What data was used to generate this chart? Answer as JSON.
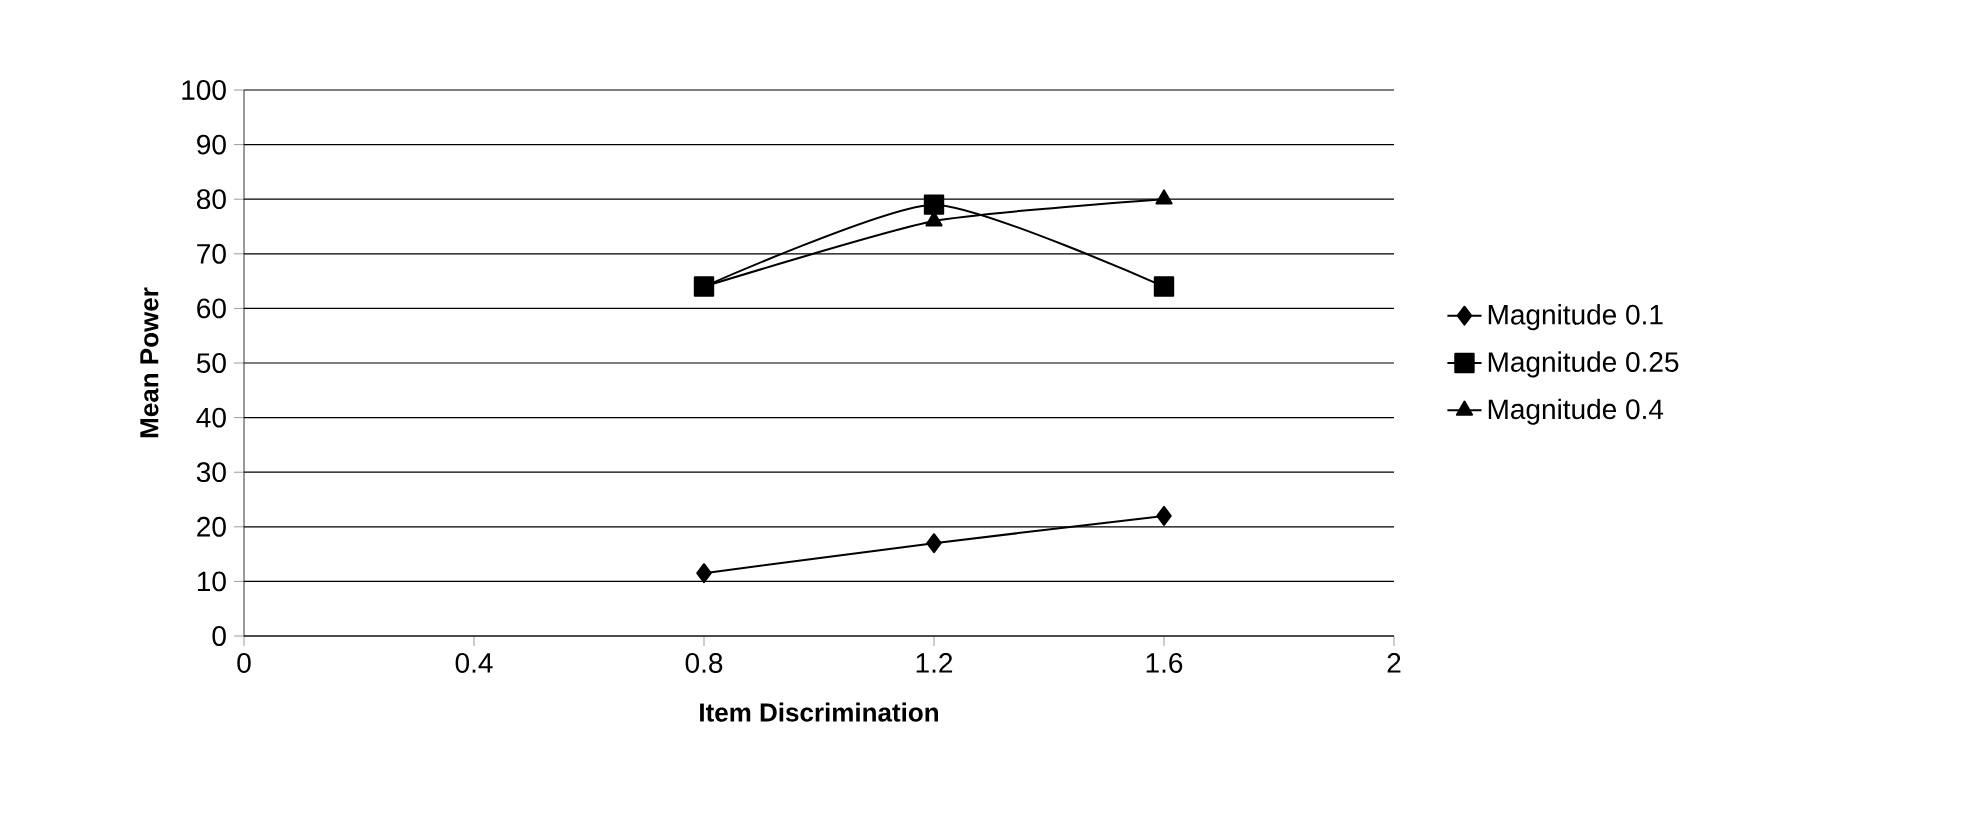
{
  "chart_data": {
    "type": "line",
    "xlabel": "Item Discrimination",
    "ylabel": "Mean Power",
    "x": [
      0.8,
      1.2,
      1.6
    ],
    "series": [
      {
        "name": "Magnitude 0.1",
        "color": "#000000",
        "marker": "diamond",
        "values": [
          11.5,
          17,
          22
        ]
      },
      {
        "name": "Magnitude 0.25",
        "color": "#000000",
        "marker": "square",
        "values": [
          64,
          79,
          64
        ]
      },
      {
        "name": "Magnitude 0.4",
        "color": "#000000",
        "marker": "triangle",
        "values": [
          64,
          76,
          80
        ]
      }
    ],
    "xlim": [
      0,
      2
    ],
    "xticks": [
      0,
      0.4,
      0.8,
      1.2,
      1.6,
      2
    ],
    "ylim": [
      0,
      100
    ],
    "yticks": [
      0,
      10,
      20,
      30,
      40,
      50,
      60,
      70,
      80,
      90,
      100
    ],
    "grid": "y",
    "legend": "right",
    "line_style": "solid"
  }
}
